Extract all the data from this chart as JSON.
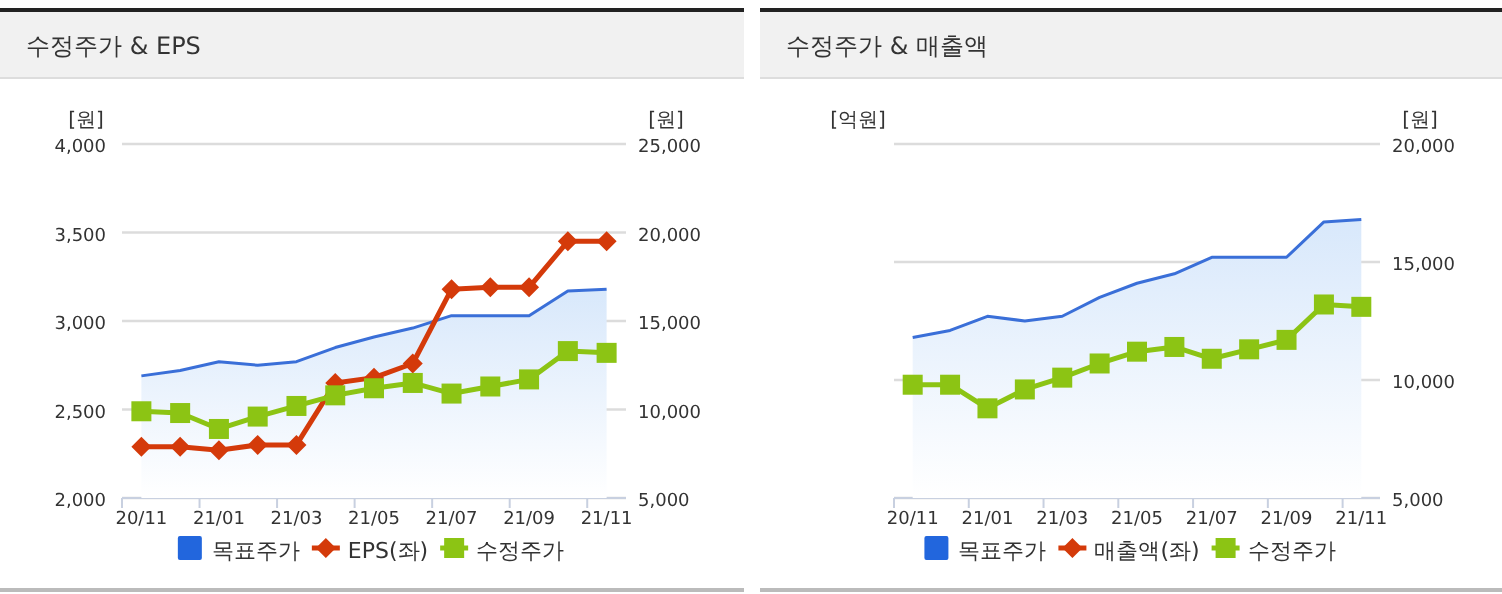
{
  "chart_data": [
    {
      "type": "line",
      "title": "수정주가 & EPS",
      "ylabel": "[원]",
      "y2label": "[원]",
      "categories": [
        "20/11",
        null,
        "21/01",
        null,
        "21/03",
        null,
        "21/05",
        null,
        "21/07",
        null,
        "21/09",
        null,
        "21/11"
      ],
      "ylim": [
        2000,
        4000
      ],
      "yticks": [
        {
          "value": 2000,
          "label": "2,000"
        },
        {
          "value": 2500,
          "label": "2,500"
        },
        {
          "value": 3000,
          "label": "3,000"
        },
        {
          "value": 3500,
          "label": "3,500"
        },
        {
          "value": 4000,
          "label": "4,000"
        }
      ],
      "y2lim": [
        5000,
        25000
      ],
      "y2ticks": [
        {
          "value": 5000,
          "label": "5,000"
        },
        {
          "value": 10000,
          "label": "10,000"
        },
        {
          "value": 15000,
          "label": "15,000"
        },
        {
          "value": 20000,
          "label": "20,000"
        },
        {
          "value": 25000,
          "label": "25,000"
        }
      ],
      "grid": "y",
      "legend": "bottom",
      "series": [
        {
          "name": "목표주가",
          "type": "area",
          "axis": "y2",
          "color": "#3a6fd8",
          "marker": "none",
          "values": [
            11900,
            12200,
            12700,
            12500,
            12700,
            13500,
            14100,
            14600,
            15300,
            15300,
            15300,
            16700,
            16800
          ]
        },
        {
          "name": "EPS(좌)",
          "type": "line",
          "axis": "y",
          "color": "#d43a0a",
          "marker": "diamond",
          "values": [
            2290,
            2290,
            2270,
            2300,
            2300,
            2650,
            2680,
            2760,
            3180,
            3190,
            3190,
            3450,
            3450
          ]
        },
        {
          "name": "수정주가",
          "type": "line",
          "axis": "y2",
          "color": "#8cc414",
          "marker": "square",
          "values": [
            9900,
            9800,
            8900,
            9600,
            10200,
            10800,
            11200,
            11500,
            10900,
            11300,
            11700,
            13300,
            13200
          ]
        }
      ]
    },
    {
      "type": "line",
      "title": "수정주가 & 매출액",
      "ylabel": "[억원]",
      "y2label": "[원]",
      "categories": [
        "20/11",
        null,
        "21/01",
        null,
        "21/03",
        null,
        "21/05",
        null,
        "21/07",
        null,
        "21/09",
        null,
        "21/11"
      ],
      "y2lim": [
        5000,
        20000
      ],
      "y2ticks": [
        {
          "value": 5000,
          "label": "5,000"
        },
        {
          "value": 10000,
          "label": "10,000"
        },
        {
          "value": 15000,
          "label": "15,000"
        },
        {
          "value": 20000,
          "label": "20,000"
        }
      ],
      "grid": "y",
      "legend": "bottom",
      "series": [
        {
          "name": "목표주가",
          "type": "area",
          "axis": "y2",
          "color": "#3a6fd8",
          "marker": "none",
          "values": [
            11800,
            12100,
            12700,
            12500,
            12700,
            13500,
            14100,
            14500,
            15200,
            15200,
            15200,
            16700,
            16800
          ]
        },
        {
          "name": "매출액(좌)",
          "type": "line",
          "axis": "y",
          "color": "#d43a0a",
          "marker": "diamond",
          "values": [
            null,
            null,
            null,
            null,
            null,
            null,
            null,
            null,
            null,
            null,
            null,
            null,
            null
          ]
        },
        {
          "name": "수정주가",
          "type": "line",
          "axis": "y2",
          "color": "#8cc414",
          "marker": "square",
          "values": [
            9800,
            9800,
            8800,
            9600,
            10100,
            10700,
            11200,
            11400,
            10900,
            11300,
            11700,
            13200,
            13100
          ]
        }
      ]
    }
  ]
}
